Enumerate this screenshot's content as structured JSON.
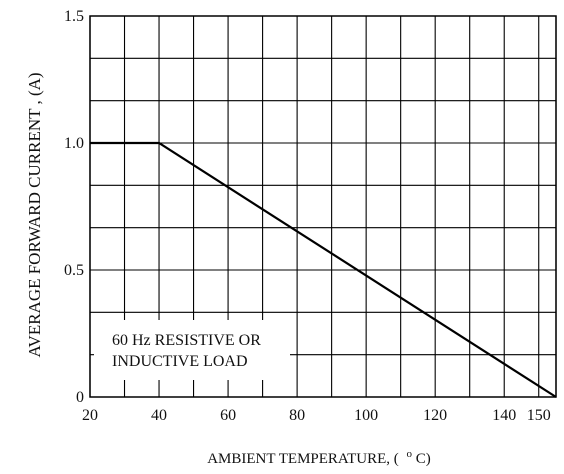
{
  "chart_data": {
    "type": "line",
    "title": "",
    "xlabel": "AMBIENT TEMPERATURE, (  °C)",
    "xlabel_prefix": "AMBIENT TEMPERATURE, (",
    "xlabel_unit_sup": "o",
    "xlabel_unit": "C)",
    "ylabel": "AVERAGE FORWARD CURRENT , (A)",
    "xlim": [
      20,
      155
    ],
    "ylim": [
      0,
      1.5
    ],
    "x_ticks": [
      {
        "value": 20,
        "label": "20"
      },
      {
        "value": 40,
        "label": "40"
      },
      {
        "value": 60,
        "label": "60"
      },
      {
        "value": 80,
        "label": "80"
      },
      {
        "value": 100,
        "label": "100"
      },
      {
        "value": 120,
        "label": "120"
      },
      {
        "value": 140,
        "label": "140"
      },
      {
        "value": 150,
        "label": "150"
      }
    ],
    "y_ticks": [
      {
        "value": 0,
        "label": "0"
      },
      {
        "value": 0.5,
        "label": "0.5"
      },
      {
        "value": 1.0,
        "label": "1.0"
      },
      {
        "value": 1.5,
        "label": "1.5"
      }
    ],
    "x_grid": [
      20,
      30,
      40,
      50,
      60,
      70,
      80,
      90,
      100,
      110,
      120,
      130,
      140,
      150,
      155
    ],
    "y_grid": [
      0,
      0.1667,
      0.3333,
      0.5,
      0.6667,
      0.8333,
      1.0,
      1.1667,
      1.3333,
      1.5
    ],
    "grid": true,
    "series": [
      {
        "x": [
          20,
          40,
          155
        ],
        "y": [
          1.0,
          1.0,
          0.0
        ],
        "color": "#000000"
      }
    ],
    "annotation": {
      "lines": [
        "60 Hz RESISTIVE OR",
        "INDUCTIVE LOAD"
      ]
    }
  }
}
